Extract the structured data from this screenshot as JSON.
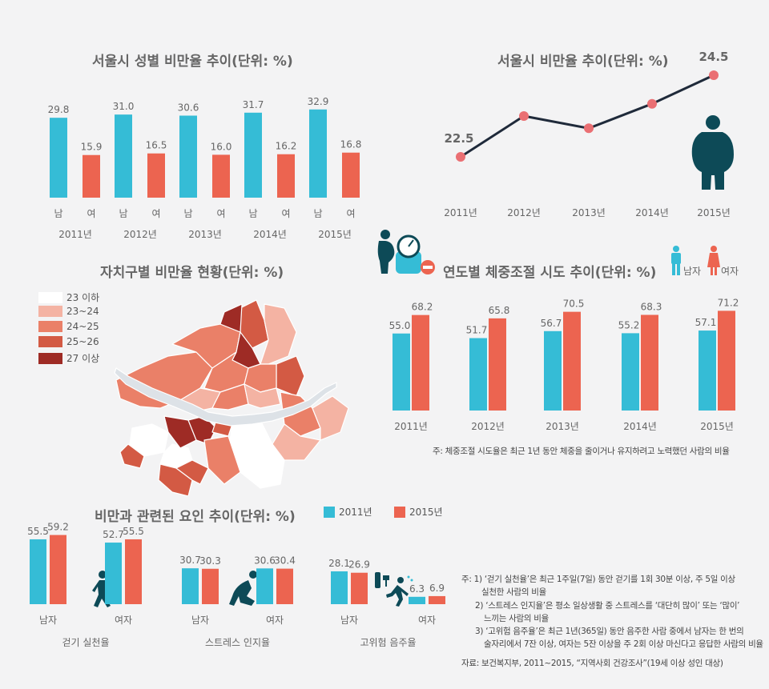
{
  "colors": {
    "male": "#35bcd6",
    "female": "#ec6450",
    "navy": "#1f2a3a",
    "point": "#ea6f73",
    "figure": "#0d4a57"
  },
  "chart_data": [
    {
      "id": "gender",
      "type": "bar",
      "title": "서울시 성별 비만율 추이(단위: %)",
      "years": [
        "2011년",
        "2012년",
        "2013년",
        "2014년",
        "2015년"
      ],
      "sub_labels": [
        "남",
        "여"
      ],
      "series": [
        {
          "name": "남",
          "values": [
            29.8,
            31.0,
            30.6,
            31.7,
            32.9
          ]
        },
        {
          "name": "여",
          "values": [
            15.9,
            16.5,
            16.0,
            16.2,
            16.8
          ]
        }
      ],
      "value_labels": [
        [
          "29.8",
          "31.0",
          "30.6",
          "31.7",
          "32.9"
        ],
        [
          "15.9",
          "16.5",
          "16.0",
          "16.2",
          "16.8"
        ]
      ]
    },
    {
      "id": "seoul",
      "type": "line",
      "title": "서울시 비만율 추이(단위: %)",
      "x": [
        "2011년",
        "2012년",
        "2013년",
        "2014년",
        "2015년"
      ],
      "y": [
        22.5,
        23.5,
        23.2,
        23.8,
        24.5
      ],
      "point_labels": [
        "22.5",
        "",
        "",
        "",
        "24.5"
      ]
    },
    {
      "id": "weight",
      "type": "bar",
      "title": "연도별 체중조절 시도 추이(단위: %)",
      "categories": [
        "2011년",
        "2012년",
        "2013년",
        "2014년",
        "2015년"
      ],
      "series": [
        {
          "name": "남자",
          "values": [
            55.0,
            51.7,
            56.7,
            55.2,
            57.1
          ]
        },
        {
          "name": "여자",
          "values": [
            68.2,
            65.8,
            70.5,
            68.3,
            71.2
          ]
        }
      ],
      "value_labels": [
        [
          "55.0",
          "51.7",
          "56.7",
          "55.2",
          "57.1"
        ],
        [
          "68.2",
          "65.8",
          "70.5",
          "68.3",
          "71.2"
        ]
      ],
      "legend": [
        "남자",
        "여자"
      ],
      "note": "주: 체중조절 시도율은 최근 1년 동안 체중을 줄이거나 유지하려고 노력했던 사람의 비율"
    },
    {
      "id": "map",
      "type": "other",
      "title": "자치구별 비만율 현황(단위: %)",
      "legend": [
        {
          "label": "23 이하",
          "color": "#ffffff"
        },
        {
          "label": "23~24",
          "color": "#f4b3a3"
        },
        {
          "label": "24~25",
          "color": "#ea8068"
        },
        {
          "label": "25~26",
          "color": "#d35a44"
        },
        {
          "label": "27 이상",
          "color": "#9e2b25"
        }
      ]
    },
    {
      "id": "factors",
      "type": "bar",
      "title": "비만과 관련된 요인 추이(단위: %)",
      "legend": [
        "2011년",
        "2015년"
      ],
      "groups": [
        {
          "name": "걷기 실천율",
          "sub": [
            "남자",
            "여자"
          ],
          "values": [
            [
              55.5,
              59.2
            ],
            [
              52.7,
              55.5
            ]
          ],
          "labels": [
            [
              "55.5",
              "59.2"
            ],
            [
              "52.7",
              "55.5"
            ]
          ]
        },
        {
          "name": "스트레스 인지율",
          "sub": [
            "남자",
            "여자"
          ],
          "values": [
            [
              30.7,
              30.3
            ],
            [
              30.6,
              30.4
            ]
          ],
          "labels": [
            [
              "30.7",
              "30.3"
            ],
            [
              "30.6",
              "30.4"
            ]
          ]
        },
        {
          "name": "고위험 음주율",
          "sub": [
            "남자",
            "여자"
          ],
          "values": [
            [
              28.1,
              26.9
            ],
            [
              6.3,
              6.9
            ]
          ],
          "labels": [
            [
              "28.1",
              "26.9"
            ],
            [
              "6.3",
              "6.9"
            ]
          ]
        }
      ]
    }
  ],
  "notes": [
    "주: 1) ‘걷기 실천율’은 최근 1주일(7일) 동안 걷기를 1회 30분 이상, 주 5일 이상",
    "실천한 사람의 비율",
    "2) ‘스트레스 인지율’은 평소 일상생활 중 스트레스를 ‘대단히 많이’ 또는 ‘많이’",
    "느끼는 사람의 비율",
    "3) ‘고위험 음주율’은 최근 1년(365일) 동안 음주한 사람 중에서 남자는 한 번의",
    "술자리에서 7잔 이상, 여자는 5잔 이상을 주 2회 이상 마신다고 응답한 사람의 비율"
  ],
  "source": "자료: 보건복지부, 2011~2015, “지역사회 건강조사”(19세 이상 성인 대상)"
}
